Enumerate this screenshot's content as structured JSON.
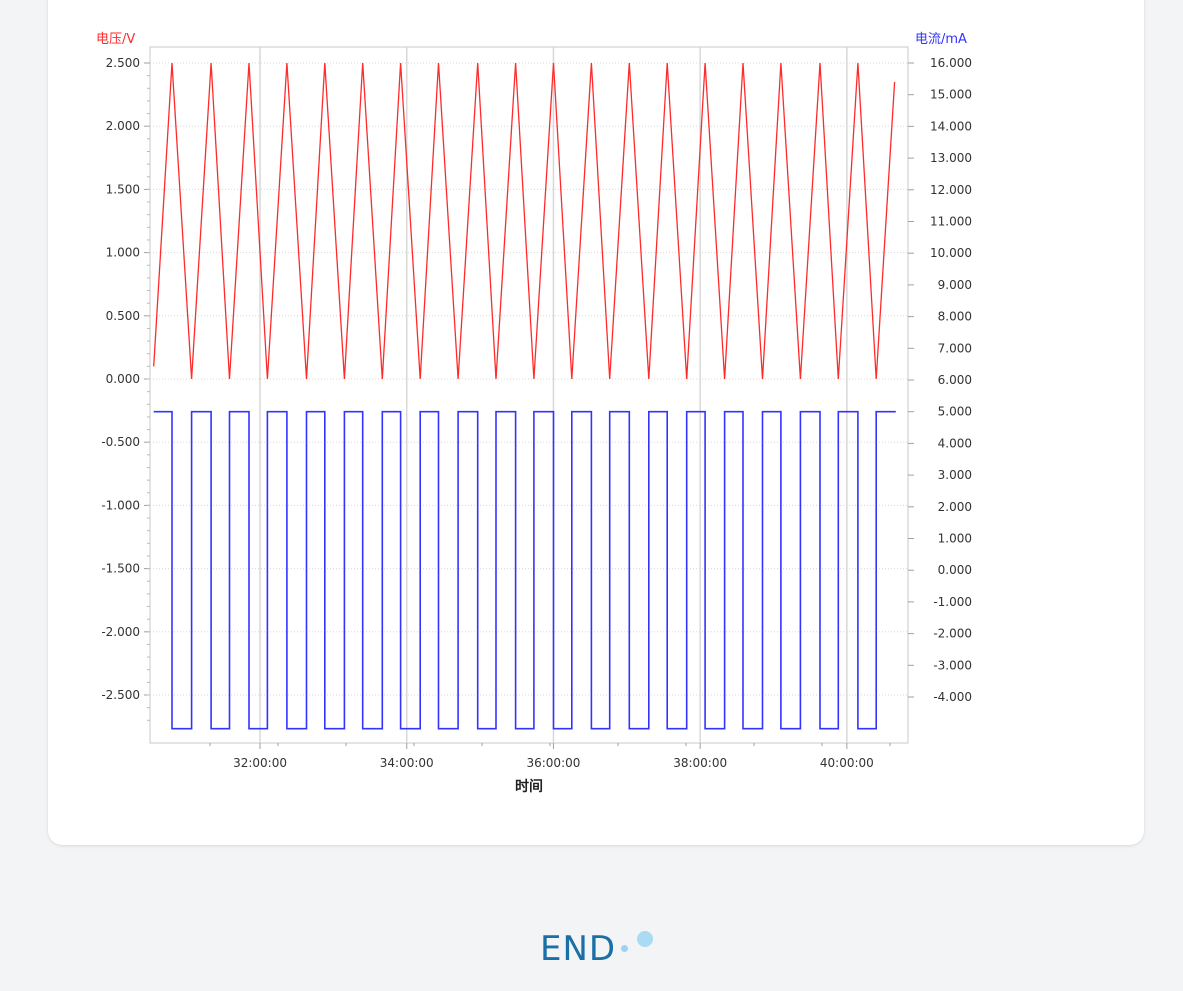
{
  "colors": {
    "voltage": "#ff2a2a",
    "current": "#3333ff",
    "axis": "#a0a0a0",
    "grid": "#d8d8d8",
    "end_text": "#1a6fa6",
    "end_dots": "#a9dbf3"
  },
  "footer": {
    "end_label": "END"
  },
  "chart_data": {
    "type": "line",
    "title": "",
    "xlabel": "时间",
    "ylabel_left": "电压/V",
    "ylabel_right": "电流/mA",
    "x_unit": "time (hh:mm:ss)",
    "xlim": [
      "30:30:00",
      "40:50:00"
    ],
    "x_ticks": [
      "32:00:00",
      "34:00:00",
      "36:00:00",
      "38:00:00",
      "40:00:00"
    ],
    "ylim_left": [
      -2.75,
      2.6
    ],
    "ylim_right": [
      -5.0,
      16.2
    ],
    "y_ticks_left": [
      "2.500",
      "2.000",
      "1.500",
      "1.000",
      "0.500",
      "0.000",
      "-0.500",
      "-1.000",
      "-1.500",
      "-2.000",
      "-2.500"
    ],
    "y_ticks_right": [
      "16.000",
      "15.000",
      "14.000",
      "13.000",
      "12.000",
      "11.000",
      "10.000",
      "9.000",
      "8.000",
      "7.000",
      "6.000",
      "5.000",
      "4.000",
      "3.000",
      "2.000",
      "1.000",
      "0.000",
      "-1.000",
      "-2.000",
      "-3.000",
      "-4.000"
    ],
    "grid": true,
    "legend": "none",
    "series": [
      {
        "axis": "left",
        "color": "#ff2a2a",
        "points": [
          [
            "30:33:00",
            0.1
          ],
          [
            "30:48:00",
            2.5
          ],
          [
            "31:04:00",
            0.0
          ],
          [
            "31:20:00",
            2.5
          ],
          [
            "31:35:00",
            0.0
          ],
          [
            "31:51:00",
            2.5
          ],
          [
            "32:06:00",
            0.0
          ],
          [
            "32:22:00",
            2.5
          ],
          [
            "32:38:00",
            0.0
          ],
          [
            "32:53:00",
            2.5
          ],
          [
            "33:09:00",
            0.0
          ],
          [
            "33:24:00",
            2.5
          ],
          [
            "33:40:00",
            0.0
          ],
          [
            "33:55:00",
            2.5
          ],
          [
            "34:11:00",
            0.0
          ],
          [
            "34:26:00",
            2.5
          ],
          [
            "34:42:00",
            0.0
          ],
          [
            "34:58:00",
            2.5
          ],
          [
            "35:13:00",
            0.0
          ],
          [
            "35:29:00",
            2.5
          ],
          [
            "35:44:00",
            0.0
          ],
          [
            "36:00:00",
            2.5
          ],
          [
            "36:15:00",
            0.0
          ],
          [
            "36:31:00",
            2.5
          ],
          [
            "36:46:00",
            0.0
          ],
          [
            "37:02:00",
            2.5
          ],
          [
            "37:18:00",
            0.0
          ],
          [
            "37:33:00",
            2.5
          ],
          [
            "37:49:00",
            0.0
          ],
          [
            "38:04:00",
            2.5
          ],
          [
            "38:20:00",
            0.0
          ],
          [
            "38:35:00",
            2.5
          ],
          [
            "38:51:00",
            0.0
          ],
          [
            "39:06:00",
            2.5
          ],
          [
            "39:22:00",
            0.0
          ],
          [
            "39:38:00",
            2.5
          ],
          [
            "39:53:00",
            0.0
          ],
          [
            "40:09:00",
            2.5
          ],
          [
            "40:24:00",
            0.0
          ],
          [
            "40:39:00",
            2.35
          ]
        ]
      },
      {
        "axis": "right",
        "color": "#3333ff",
        "high": 5.0,
        "low": -5.0,
        "start": "30:33:00",
        "end": "40:40:00",
        "high_intervals": [
          [
            "30:33:00",
            "30:48:00"
          ],
          [
            "31:04:00",
            "31:20:00"
          ],
          [
            "31:35:00",
            "31:51:00"
          ],
          [
            "32:06:00",
            "32:22:00"
          ],
          [
            "32:38:00",
            "32:53:00"
          ],
          [
            "33:09:00",
            "33:24:00"
          ],
          [
            "33:40:00",
            "33:55:00"
          ],
          [
            "34:11:00",
            "34:26:00"
          ],
          [
            "34:42:00",
            "34:58:00"
          ],
          [
            "35:13:00",
            "35:29:00"
          ],
          [
            "35:44:00",
            "36:00:00"
          ],
          [
            "36:15:00",
            "36:31:00"
          ],
          [
            "36:46:00",
            "37:02:00"
          ],
          [
            "37:18:00",
            "37:33:00"
          ],
          [
            "37:49:00",
            "38:04:00"
          ],
          [
            "38:20:00",
            "38:35:00"
          ],
          [
            "38:51:00",
            "39:06:00"
          ],
          [
            "39:22:00",
            "39:38:00"
          ],
          [
            "39:53:00",
            "40:09:00"
          ],
          [
            "40:24:00",
            "40:40:00"
          ]
        ]
      }
    ]
  }
}
